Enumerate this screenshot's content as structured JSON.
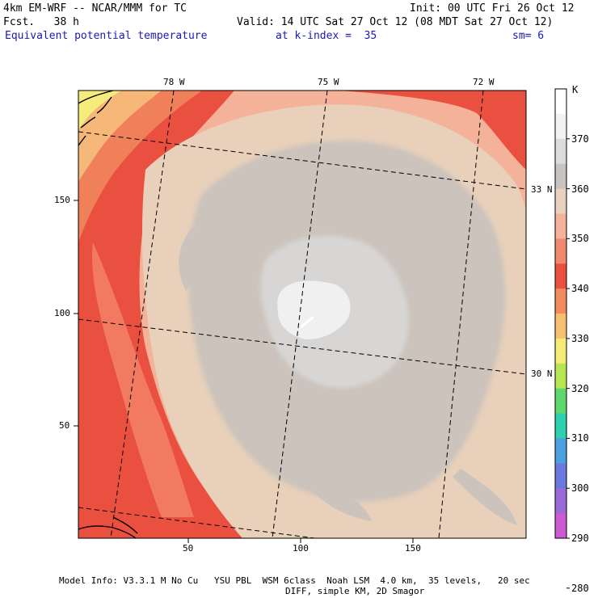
{
  "header": {
    "model_line": "4km EM-WRF -- NCAR/MMM for TC",
    "init_line": "Init: 00 UTC Fri 26 Oct 12",
    "fcst_line": "Fcst.   38 h",
    "valid_line": "Valid: 14 UTC Sat 27 Oct 12 (08 MDT Sat 27 Oct 12)",
    "field_name": "Equivalent potential temperature",
    "level": "at k-index =  35",
    "smoothing": "sm= 6"
  },
  "axes": {
    "top_lon": [
      "78 W",
      "75 W",
      "72 W"
    ],
    "right_lat": [
      "33 N",
      "30 N"
    ],
    "left_y": [
      "150",
      "100",
      "50"
    ],
    "bottom_x": [
      "50",
      "100",
      "150"
    ]
  },
  "colorbar": {
    "unit": "K",
    "labels": [
      "370",
      "360",
      "350",
      "340",
      "330",
      "320",
      "310",
      "300",
      "290",
      "280"
    ],
    "colors": [
      "#ffffff",
      "#f2f2f2",
      "#dcdcdc",
      "#c8c4c0",
      "#e8d2bd",
      "#f4b29a",
      "#f08a6e",
      "#ea5040",
      "#f28c5c",
      "#f6c070",
      "#f4ec74",
      "#b8e652",
      "#5ed86e",
      "#2ed0b0",
      "#4aa0e0",
      "#6a78e0",
      "#9a6ad8",
      "#cc5ad2"
    ]
  },
  "footer": {
    "line1": "Model Info: V3.3.1 M No Cu   YSU PBL  WSM 6class  Noah LSM  4.0 km,  35 levels,   20 sec",
    "line2": "DIFF, simple KM, 2D Smagor"
  }
}
